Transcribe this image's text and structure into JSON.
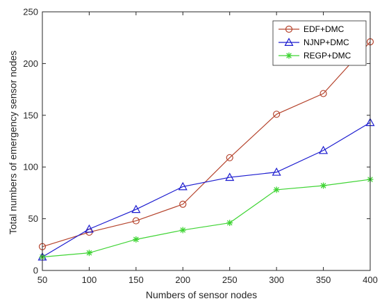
{
  "chart_data": {
    "type": "line",
    "title": "",
    "xlabel": "Numbers of sensor nodes",
    "ylabel": "Total numbers of emergency sensor nodes",
    "x": [
      50,
      100,
      150,
      200,
      250,
      300,
      350,
      400
    ],
    "xlim": [
      50,
      400
    ],
    "ylim": [
      0,
      250
    ],
    "xticks": [
      "50",
      "100",
      "150",
      "200",
      "250",
      "300",
      "350",
      "400"
    ],
    "yticks": [
      "0",
      "50",
      "100",
      "150",
      "200",
      "250"
    ],
    "grid": false,
    "legend_position": "top-right",
    "series": [
      {
        "name": "EDF+DMC",
        "color": "#b5432c",
        "marker": "circle",
        "values": [
          23,
          37,
          48,
          64,
          109,
          151,
          171,
          221
        ]
      },
      {
        "name": "NJNP+DMC",
        "color": "#1a1acf",
        "marker": "triangle",
        "values": [
          13,
          40,
          59,
          81,
          90,
          95,
          116,
          143
        ]
      },
      {
        "name": "REGP+DMC",
        "color": "#3ed433",
        "marker": "asterisk",
        "values": [
          13,
          17,
          30,
          39,
          46,
          78,
          82,
          88
        ]
      }
    ]
  }
}
